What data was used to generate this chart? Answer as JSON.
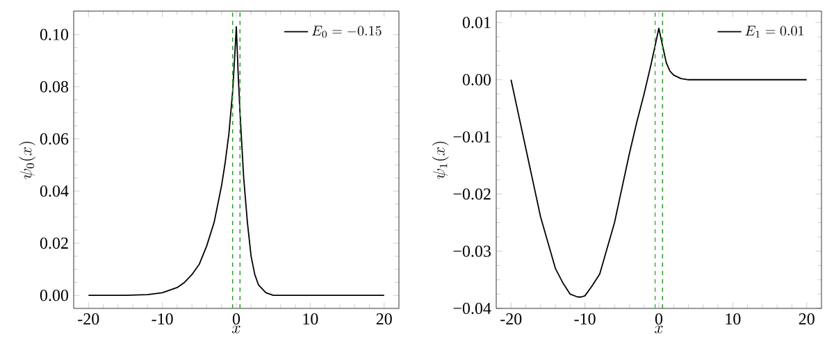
{
  "chart_data": [
    {
      "type": "line",
      "xlabel": "x",
      "ylabel": "\\psi_0(x)",
      "legend": "top right",
      "line_style": "solid",
      "marker": "none",
      "x": [
        -20,
        -15,
        -12,
        -10,
        -9,
        -8,
        -7,
        -6,
        -5,
        -4,
        -3,
        -2,
        -1.5,
        -1,
        -0.5,
        -0.25,
        0,
        0.25,
        0.5,
        1,
        1.5,
        2,
        2.5,
        3,
        4,
        5,
        10,
        20
      ],
      "series": [
        {
          "name": "E_0 = -0.15",
          "color": "#000000",
          "values": [
            0,
            0,
            0.0003,
            0.001,
            0.002,
            0.003,
            0.005,
            0.008,
            0.012,
            0.019,
            0.028,
            0.042,
            0.051,
            0.062,
            0.078,
            0.09,
            0.103,
            0.085,
            0.07,
            0.045,
            0.028,
            0.015,
            0.008,
            0.004,
            0.001,
            0,
            0,
            0
          ]
        }
      ],
      "xlim": [
        -22,
        22
      ],
      "ylim": [
        -0.005,
        0.109
      ],
      "xticks": [
        -20,
        -10,
        0,
        10,
        20
      ],
      "yticks": [
        {
          "value": 0,
          "label": "0.00"
        },
        {
          "value": 0.02,
          "label": "0.02"
        },
        {
          "value": 0.04,
          "label": "0.04"
        },
        {
          "value": 0.06,
          "label": "0.06"
        },
        {
          "value": 0.08,
          "label": "0.08"
        },
        {
          "value": 0.1,
          "label": "0.10"
        }
      ],
      "ref_lines": [
        {
          "axis": "x",
          "value": -0.5,
          "color": "#2ca02c",
          "line_style": "dashed"
        },
        {
          "axis": "x",
          "value": 0.5,
          "color": "#2ca02c",
          "line_style": "dashed"
        }
      ]
    },
    {
      "type": "line",
      "xlabel": "x",
      "ylabel": "\\psi_1(x)",
      "legend": "top right",
      "line_style": "solid",
      "marker": "none",
      "x": [
        -20,
        -19,
        -18,
        -17,
        -16,
        -15,
        -14,
        -13,
        -12,
        -11,
        -10.5,
        -10,
        -9,
        -8,
        -7,
        -6,
        -5,
        -4,
        -3,
        -2,
        -1,
        -0.5,
        0,
        0.5,
        1,
        1.5,
        2,
        3,
        4,
        10,
        20
      ],
      "series": [
        {
          "name": "E_1 = 0.01",
          "color": "#000000",
          "values": [
            0,
            -0.006,
            -0.012,
            -0.018,
            -0.024,
            -0.0285,
            -0.033,
            -0.0355,
            -0.0375,
            -0.038,
            -0.038,
            -0.0378,
            -0.036,
            -0.034,
            -0.0295,
            -0.025,
            -0.019,
            -0.013,
            -0.0075,
            -0.0025,
            0.003,
            0.006,
            0.009,
            0.006,
            0.003,
            0.0015,
            0.0008,
            0.0002,
            0,
            0,
            0
          ]
        }
      ],
      "xlim": [
        -22,
        22
      ],
      "ylim": [
        -0.04,
        0.012
      ],
      "xticks": [
        -20,
        -10,
        0,
        10,
        20
      ],
      "yticks": [
        {
          "value": -0.04,
          "label": "−0.04"
        },
        {
          "value": -0.03,
          "label": "−0.03"
        },
        {
          "value": -0.02,
          "label": "−0.02"
        },
        {
          "value": -0.01,
          "label": "−0.01"
        },
        {
          "value": 0,
          "label": "0.00"
        },
        {
          "value": 0.01,
          "label": "0.01"
        }
      ],
      "ref_lines": [
        {
          "axis": "x",
          "value": -0.5,
          "color": "#2ca02c",
          "line_style": "dashed"
        },
        {
          "axis": "x",
          "value": 0.5,
          "color": "#2ca02c",
          "line_style": "dashed"
        }
      ]
    }
  ]
}
